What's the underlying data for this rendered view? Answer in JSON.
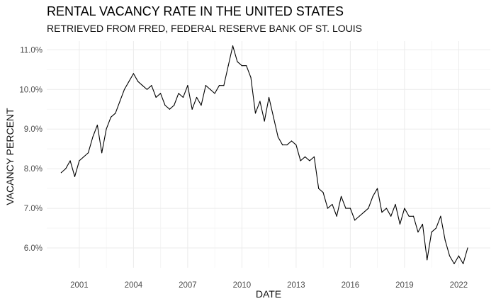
{
  "chart_data": {
    "type": "line",
    "title": "RENTAL VACANCY RATE IN THE UNITED STATES",
    "subtitle": "RETRIEVED FROM FRED, FEDERAL RESERVE BANK OF ST. LOUIS",
    "xlabel": "DATE",
    "ylabel": "VACANCY PERCENT",
    "xlim": [
      1999.2,
      2023.75
    ],
    "ylim": [
      5.5,
      11.22
    ],
    "x_ticks": [
      2001,
      2004,
      2007,
      2010,
      2013,
      2016,
      2019,
      2022
    ],
    "x_tick_labels": [
      "2001",
      "2004",
      "2007",
      "2010",
      "2013",
      "2016",
      "2019",
      "2022"
    ],
    "y_ticks": [
      6,
      7,
      8,
      9,
      10,
      11
    ],
    "y_tick_labels": [
      "6.0%",
      "7.0%",
      "8.0%",
      "9.0%",
      "10.0%",
      "11.0%"
    ],
    "grid": true,
    "series": [
      {
        "x": [
          "2000-01-01",
          "2000-04-01",
          "2000-07-01",
          "2000-10-01",
          "2001-01-01",
          "2001-04-01",
          "2001-07-01",
          "2001-10-01",
          "2002-01-01",
          "2002-04-01",
          "2002-07-01",
          "2002-10-01",
          "2003-01-01",
          "2003-04-01",
          "2003-07-01",
          "2003-10-01",
          "2004-01-01",
          "2004-04-01",
          "2004-07-01",
          "2004-10-01",
          "2005-01-01",
          "2005-04-01",
          "2005-07-01",
          "2005-10-01",
          "2006-01-01",
          "2006-04-01",
          "2006-07-01",
          "2006-10-01",
          "2007-01-01",
          "2007-04-01",
          "2007-07-01",
          "2007-10-01",
          "2008-01-01",
          "2008-04-01",
          "2008-07-01",
          "2008-10-01",
          "2009-01-01",
          "2009-04-01",
          "2009-07-01",
          "2009-10-01",
          "2010-01-01",
          "2010-04-01",
          "2010-07-01",
          "2010-10-01",
          "2011-01-01",
          "2011-04-01",
          "2011-07-01",
          "2011-10-01",
          "2012-01-01",
          "2012-04-01",
          "2012-07-01",
          "2012-10-01",
          "2013-01-01",
          "2013-04-01",
          "2013-07-01",
          "2013-10-01",
          "2014-01-01",
          "2014-04-01",
          "2014-07-01",
          "2014-10-01",
          "2015-01-01",
          "2015-04-01",
          "2015-07-01",
          "2015-10-01",
          "2016-01-01",
          "2016-04-01",
          "2016-07-01",
          "2016-10-01",
          "2017-01-01",
          "2017-04-01",
          "2017-07-01",
          "2017-10-01",
          "2018-01-01",
          "2018-04-01",
          "2018-07-01",
          "2018-10-01",
          "2019-01-01",
          "2019-04-01",
          "2019-07-01",
          "2019-10-01",
          "2020-01-01",
          "2020-04-01",
          "2020-07-01",
          "2020-10-01",
          "2021-01-01",
          "2021-04-01",
          "2021-07-01",
          "2021-10-01",
          "2022-01-01",
          "2022-04-01",
          "2022-07-01"
        ],
        "values": [
          7.9,
          8.0,
          8.2,
          7.8,
          8.2,
          8.3,
          8.4,
          8.8,
          9.1,
          8.4,
          9.0,
          9.3,
          9.4,
          9.7,
          10.0,
          10.2,
          10.4,
          10.2,
          10.1,
          10.0,
          10.1,
          9.8,
          9.9,
          9.6,
          9.5,
          9.6,
          9.9,
          9.8,
          10.1,
          9.5,
          9.8,
          9.6,
          10.1,
          10.0,
          9.9,
          10.1,
          10.1,
          10.6,
          11.1,
          10.7,
          10.6,
          10.6,
          10.3,
          9.4,
          9.7,
          9.2,
          9.8,
          9.3,
          8.8,
          8.6,
          8.6,
          8.7,
          8.6,
          8.2,
          8.3,
          8.2,
          8.3,
          7.5,
          7.4,
          7.0,
          7.1,
          6.8,
          7.3,
          7.0,
          7.0,
          6.7,
          6.8,
          6.9,
          7.0,
          7.3,
          7.5,
          6.9,
          7.0,
          6.8,
          7.1,
          6.6,
          7.0,
          6.8,
          6.8,
          6.4,
          6.6,
          5.7,
          6.4,
          6.5,
          6.8,
          6.2,
          5.8,
          5.6,
          5.8,
          5.6,
          6.0
        ]
      }
    ]
  }
}
